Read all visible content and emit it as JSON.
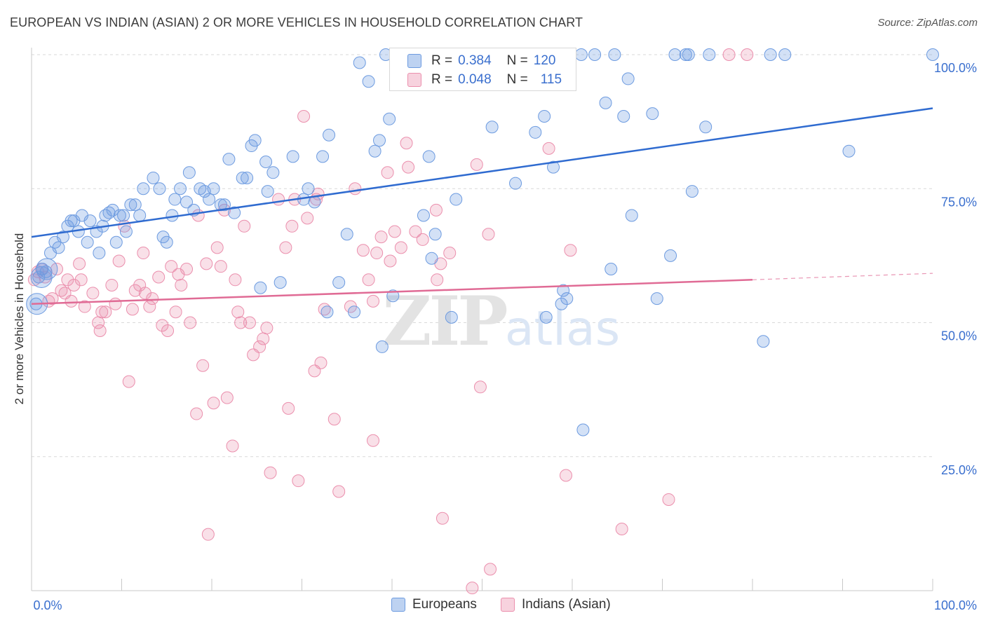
{
  "title": "EUROPEAN VS INDIAN (ASIAN) 2 OR MORE VEHICLES IN HOUSEHOLD CORRELATION CHART",
  "source": "Source: ZipAtlas.com",
  "watermark": {
    "zip": "ZIP",
    "atlas": "atlas"
  },
  "legend_stats": [
    {
      "r_label": "R =",
      "r": "0.384",
      "n_label": "N =",
      "n": "120",
      "color": "#6d9be0"
    },
    {
      "r_label": "R =",
      "r": "0.048",
      "n_label": "N =",
      "n": "115",
      "color": "#eb8fad"
    }
  ],
  "chart_data": {
    "type": "scatter",
    "title": "EUROPEAN VS INDIAN (ASIAN) 2 OR MORE VEHICLES IN HOUSEHOLD CORRELATION CHART",
    "xlabel": "",
    "ylabel": "2 or more Vehicles in Household",
    "xlim": [
      0,
      100
    ],
    "ylim": [
      0,
      100
    ],
    "x_tick_labels": [
      "0.0%",
      "100.0%"
    ],
    "y_tick_labels": [
      {
        "value": 25,
        "label": "25.0%"
      },
      {
        "value": 50,
        "label": "50.0%"
      },
      {
        "value": 75,
        "label": "75.0%"
      },
      {
        "value": 100,
        "label": "100.0%"
      }
    ],
    "grid": true,
    "series": [
      {
        "name": "Europeans",
        "color": "#6d9be0",
        "line_color": "#2f6bd0",
        "trend": {
          "x": [
            0,
            100
          ],
          "y": [
            66.0,
            90.0
          ]
        },
        "points": [
          [
            0.5,
            53.5
          ],
          [
            0.8,
            58.5
          ],
          [
            1.2,
            60
          ],
          [
            1.6,
            59.5
          ],
          [
            2.1,
            63
          ],
          [
            2.6,
            65
          ],
          [
            3,
            64
          ],
          [
            3.5,
            66
          ],
          [
            4,
            68
          ],
          [
            4.4,
            69
          ],
          [
            4.7,
            69
          ],
          [
            5.2,
            67
          ],
          [
            5.6,
            70
          ],
          [
            6.2,
            65
          ],
          [
            6.5,
            69
          ],
          [
            7.2,
            67
          ],
          [
            7.5,
            63
          ],
          [
            7.9,
            68
          ],
          [
            8.2,
            70
          ],
          [
            8.6,
            70.5
          ],
          [
            9,
            71
          ],
          [
            9.4,
            65
          ],
          [
            9.8,
            70
          ],
          [
            10.2,
            70
          ],
          [
            10.5,
            67
          ],
          [
            11,
            72
          ],
          [
            11.5,
            72
          ],
          [
            12,
            70
          ],
          [
            12.4,
            75
          ],
          [
            13.5,
            77
          ],
          [
            14.2,
            75
          ],
          [
            14.6,
            66
          ],
          [
            15,
            65
          ],
          [
            15.6,
            70
          ],
          [
            15.9,
            73
          ],
          [
            16.5,
            75
          ],
          [
            17.2,
            72.5
          ],
          [
            17.5,
            78
          ],
          [
            18,
            71
          ],
          [
            18.7,
            75
          ],
          [
            19.2,
            74.5
          ],
          [
            19.7,
            73
          ],
          [
            20.2,
            75
          ],
          [
            21,
            72
          ],
          [
            21.4,
            72
          ],
          [
            21.9,
            80.5
          ],
          [
            22.5,
            70.5
          ],
          [
            23.4,
            77
          ],
          [
            23.9,
            77
          ],
          [
            24.4,
            83
          ],
          [
            24.8,
            84
          ],
          [
            25.4,
            56.5
          ],
          [
            26,
            80
          ],
          [
            26.2,
            74.5
          ],
          [
            26.8,
            78
          ],
          [
            27.6,
            57.5
          ],
          [
            29,
            81
          ],
          [
            30.2,
            73
          ],
          [
            30.7,
            75
          ],
          [
            31.4,
            72.5
          ],
          [
            32.3,
            81
          ],
          [
            32.8,
            52
          ],
          [
            33,
            85
          ],
          [
            34.1,
            57.5
          ],
          [
            35,
            66.5
          ],
          [
            35.8,
            52
          ],
          [
            36.4,
            98.5
          ],
          [
            37.4,
            95
          ],
          [
            38.1,
            82
          ],
          [
            38.6,
            84
          ],
          [
            38.9,
            45.5
          ],
          [
            39.3,
            100
          ],
          [
            39.7,
            88
          ],
          [
            40.1,
            55
          ],
          [
            41.1,
            100
          ],
          [
            41.5,
            100
          ],
          [
            41.9,
            100
          ],
          [
            43.5,
            70
          ],
          [
            44.1,
            81
          ],
          [
            44.4,
            62
          ],
          [
            44.8,
            66.5
          ],
          [
            45.2,
            100
          ],
          [
            46.2,
            100
          ],
          [
            46.6,
            51
          ],
          [
            47.1,
            73
          ],
          [
            48.8,
            96
          ],
          [
            48.6,
            100
          ],
          [
            50.2,
            100
          ],
          [
            51.1,
            86.5
          ],
          [
            51.6,
            97
          ],
          [
            51.6,
            100
          ],
          [
            51.8,
            100
          ],
          [
            51.9,
            100
          ],
          [
            52.9,
            100
          ],
          [
            53,
            100
          ],
          [
            53.7,
            76
          ],
          [
            55.2,
            100
          ],
          [
            55.9,
            85.5
          ],
          [
            56.1,
            100
          ],
          [
            56.9,
            88.5
          ],
          [
            57.1,
            51
          ],
          [
            57.9,
            79
          ],
          [
            58.8,
            53.5
          ],
          [
            59,
            56
          ],
          [
            59.4,
            54.5
          ],
          [
            61,
            100
          ],
          [
            61.2,
            30
          ],
          [
            62.5,
            100
          ],
          [
            63.7,
            91
          ],
          [
            64.3,
            60
          ],
          [
            64.7,
            100
          ],
          [
            65.7,
            88.5
          ],
          [
            66.2,
            95.5
          ],
          [
            66.6,
            70
          ],
          [
            68.9,
            89
          ],
          [
            69.4,
            54.5
          ],
          [
            70.9,
            62.5
          ],
          [
            71.4,
            100
          ],
          [
            72.6,
            100
          ],
          [
            72.9,
            100
          ],
          [
            73.3,
            74.5
          ],
          [
            74.8,
            86.5
          ],
          [
            75.2,
            100
          ],
          [
            81.2,
            46.5
          ],
          [
            82,
            100
          ],
          [
            83.6,
            100
          ],
          [
            90.7,
            82
          ],
          [
            100,
            100
          ]
        ],
        "big_points": [
          [
            0.6,
            53.5
          ],
          [
            1.1,
            58.5
          ],
          [
            1.7,
            60
          ]
        ]
      },
      {
        "name": "Indians (Asian)",
        "color": "#eb8fad",
        "line_color": "#e06b95",
        "trend": {
          "x": [
            0,
            80
          ],
          "y": [
            53.5,
            58.0
          ]
        },
        "trend_dashed": {
          "x": [
            80,
            100
          ],
          "y": [
            58.0,
            59.2
          ]
        },
        "points": [
          [
            0.3,
            58
          ],
          [
            0.7,
            59.5
          ],
          [
            1.1,
            60
          ],
          [
            1.5,
            58.5
          ],
          [
            1.9,
            54
          ],
          [
            2.3,
            54.5
          ],
          [
            2.8,
            60
          ],
          [
            3.3,
            56
          ],
          [
            3.7,
            55.5
          ],
          [
            4,
            58
          ],
          [
            4.4,
            54
          ],
          [
            4.7,
            57
          ],
          [
            5.3,
            61
          ],
          [
            5.5,
            58
          ],
          [
            5.9,
            53
          ],
          [
            6.8,
            55.5
          ],
          [
            7.4,
            50
          ],
          [
            7.6,
            48.5
          ],
          [
            7.8,
            52
          ],
          [
            8.2,
            52
          ],
          [
            8.9,
            57
          ],
          [
            9.3,
            53.5
          ],
          [
            9.7,
            61.5
          ],
          [
            10.3,
            68
          ],
          [
            10.8,
            39
          ],
          [
            11.2,
            52.5
          ],
          [
            11.5,
            56
          ],
          [
            12,
            57
          ],
          [
            12.4,
            63
          ],
          [
            12.6,
            55.5
          ],
          [
            13.1,
            53
          ],
          [
            13.4,
            54.5
          ],
          [
            14.1,
            58.5
          ],
          [
            14.5,
            49.5
          ],
          [
            15.1,
            48.5
          ],
          [
            15.5,
            60.5
          ],
          [
            16,
            52
          ],
          [
            16.3,
            59
          ],
          [
            16.6,
            57
          ],
          [
            17.2,
            60
          ],
          [
            17.6,
            50
          ],
          [
            18.3,
            33
          ],
          [
            18.5,
            70
          ],
          [
            19,
            42
          ],
          [
            19.4,
            61
          ],
          [
            19.6,
            10.5
          ],
          [
            20.2,
            35
          ],
          [
            20.6,
            64
          ],
          [
            21,
            60.5
          ],
          [
            21.4,
            71
          ],
          [
            21.7,
            36
          ],
          [
            22.3,
            27
          ],
          [
            22.6,
            58
          ],
          [
            22.9,
            52
          ],
          [
            23.2,
            50
          ],
          [
            23.6,
            68
          ],
          [
            24.2,
            50
          ],
          [
            24.6,
            44
          ],
          [
            25.3,
            45.5
          ],
          [
            25.7,
            47
          ],
          [
            26.1,
            49
          ],
          [
            26.5,
            22
          ],
          [
            27.4,
            73
          ],
          [
            28.2,
            64
          ],
          [
            28.5,
            34
          ],
          [
            28.9,
            68
          ],
          [
            29.2,
            73
          ],
          [
            29.6,
            20.5
          ],
          [
            30.2,
            88.5
          ],
          [
            30.6,
            69.5
          ],
          [
            31.4,
            41
          ],
          [
            31.6,
            73
          ],
          [
            31.8,
            74
          ],
          [
            32.1,
            42.5
          ],
          [
            32.5,
            52.5
          ],
          [
            33.6,
            32
          ],
          [
            34.1,
            18.5
          ],
          [
            35.4,
            53
          ],
          [
            35.9,
            75
          ],
          [
            36.8,
            63.5
          ],
          [
            37.4,
            58
          ],
          [
            37.9,
            54
          ],
          [
            37.9,
            28
          ],
          [
            38.3,
            63
          ],
          [
            38.8,
            66
          ],
          [
            39.5,
            78
          ],
          [
            39.8,
            61.5
          ],
          [
            40.3,
            67
          ],
          [
            41,
            64
          ],
          [
            41.6,
            83.5
          ],
          [
            41.8,
            79
          ],
          [
            42.6,
            67
          ],
          [
            43.4,
            65.5
          ],
          [
            44.9,
            71
          ],
          [
            45,
            58
          ],
          [
            45.4,
            61
          ],
          [
            45.6,
            13.5
          ],
          [
            46.4,
            63
          ],
          [
            47.6,
            100
          ],
          [
            47.9,
            95
          ],
          [
            48.9,
            0.5
          ],
          [
            49.4,
            79.5
          ],
          [
            49.8,
            38
          ],
          [
            50.7,
            66.5
          ],
          [
            50.9,
            4
          ],
          [
            52.2,
            100
          ],
          [
            57.4,
            82.5
          ],
          [
            59.3,
            21.5
          ],
          [
            59.8,
            63.5
          ],
          [
            65.5,
            11.5
          ],
          [
            70.7,
            17
          ],
          [
            77.4,
            100
          ],
          [
            79.4,
            100
          ]
        ]
      }
    ]
  },
  "axes_labels": {
    "ylabel": "2 or more Vehicles in Household",
    "x_min": "0.0%",
    "x_max": "100.0%"
  }
}
